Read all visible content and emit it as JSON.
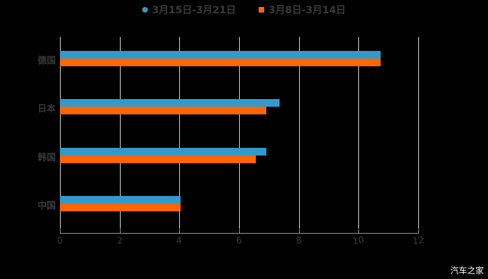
{
  "chart_data": {
    "type": "bar",
    "orientation": "horizontal",
    "title": "",
    "categories": [
      "德国",
      "日本",
      "韩国",
      "中国"
    ],
    "series": [
      {
        "name": "3月15日-3月21日",
        "color": "#3399cc",
        "values": [
          10.75,
          7.35,
          6.9,
          4.05
        ]
      },
      {
        "name": "3月8日-3月14日",
        "color": "#ff6600",
        "values": [
          10.75,
          6.9,
          6.55,
          4.05
        ]
      }
    ],
    "xlabel": "",
    "ylabel": "",
    "xlim": [
      0,
      12
    ],
    "xticks": [
      "0",
      "2",
      "4",
      "6",
      "8",
      "10",
      "12"
    ],
    "grid": true,
    "legend_position": "top"
  },
  "legend": {
    "items": [
      {
        "label": "3月15日-3月21日",
        "color": "#3399cc",
        "marker": "circle"
      },
      {
        "label": "3月8日-3月14日",
        "color": "#ff6600",
        "marker": "square"
      }
    ]
  },
  "watermark": "汽车之家"
}
